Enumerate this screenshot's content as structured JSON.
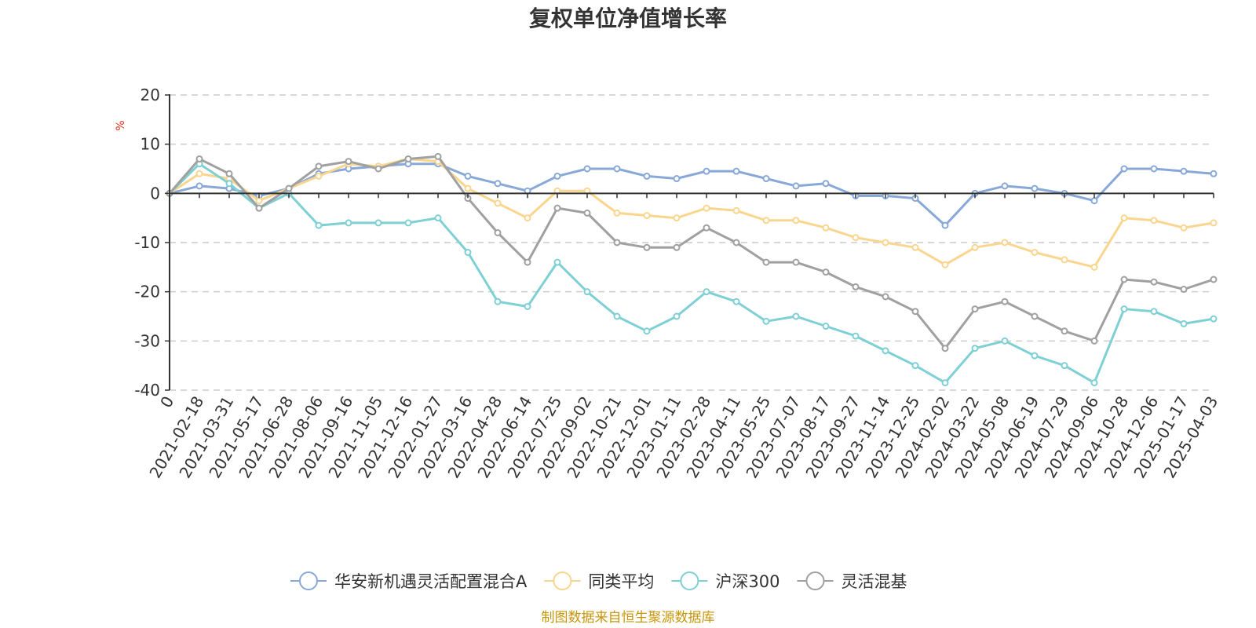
{
  "chart_data": {
    "type": "line",
    "title": "复权单位净值增长率",
    "ylabel": "%",
    "ylim": [
      -40,
      20
    ],
    "yticks": [
      20,
      10,
      0,
      -10,
      -20,
      -30,
      -40
    ],
    "grid": true,
    "legend_position": "bottom-center",
    "categories": [
      "0",
      "2021-02-18",
      "2021-03-31",
      "2021-05-17",
      "2021-06-28",
      "2021-08-06",
      "2021-09-16",
      "2021-11-05",
      "2021-12-16",
      "2022-01-27",
      "2022-03-16",
      "2022-04-28",
      "2022-06-14",
      "2022-07-25",
      "2022-09-02",
      "2022-10-21",
      "2022-12-01",
      "2023-01-11",
      "2023-02-28",
      "2023-04-11",
      "2023-05-25",
      "2023-07-07",
      "2023-08-17",
      "2023-09-27",
      "2023-11-14",
      "2023-12-25",
      "2024-02-02",
      "2024-03-22",
      "2024-05-08",
      "2024-06-19",
      "2024-07-29",
      "2024-09-06",
      "2024-10-28",
      "2024-12-06",
      "2025-01-17",
      "2025-04-03"
    ],
    "series": [
      {
        "name": "华安新机遇灵活配置混合A",
        "color": "#88a8d8",
        "values": [
          0,
          1.5,
          1.0,
          -0.5,
          1.0,
          4.0,
          5.0,
          5.5,
          6.0,
          6.0,
          3.5,
          2.0,
          0.5,
          3.5,
          5.0,
          5.0,
          3.5,
          3.0,
          4.5,
          4.5,
          3.0,
          1.5,
          2.0,
          -0.5,
          -0.5,
          -1.0,
          -6.5,
          0.0,
          1.5,
          1.0,
          0.0,
          -1.5,
          5.0,
          5.0,
          4.5,
          4.0
        ]
      },
      {
        "name": "同类平均",
        "color": "#fad58e",
        "values": [
          0,
          4.0,
          3.0,
          -1.5,
          1.0,
          3.5,
          6.0,
          5.5,
          7.0,
          6.5,
          1.0,
          -2.0,
          -5.0,
          0.5,
          0.5,
          -4.0,
          -4.5,
          -5.0,
          -3.0,
          -3.5,
          -5.5,
          -5.5,
          -7.0,
          -9.0,
          -10.0,
          -11.0,
          -14.5,
          -11.0,
          -10.0,
          -12.0,
          -13.5,
          -15.0,
          -5.0,
          -5.5,
          -7.0,
          -6.0
        ]
      },
      {
        "name": "沪深300",
        "color": "#7fd0d4",
        "values": [
          0,
          6.0,
          2.0,
          -3.0,
          0.0,
          -6.5,
          -6.0,
          -6.0,
          -6.0,
          -5.0,
          -12.0,
          -22.0,
          -23.0,
          -14.0,
          -20.0,
          -25.0,
          -28.0,
          -25.0,
          -20.0,
          -22.0,
          -26.0,
          -25.0,
          -27.0,
          -29.0,
          -32.0,
          -35.0,
          -38.5,
          -31.5,
          -30.0,
          -33.0,
          -35.0,
          -38.5,
          -23.5,
          -24.0,
          -26.5,
          -25.5
        ]
      },
      {
        "name": "灵活混基",
        "color": "#a0a0a0",
        "values": [
          0,
          7.0,
          4.0,
          -3.0,
          1.0,
          5.5,
          6.5,
          5.0,
          7.0,
          7.5,
          -1.0,
          -8.0,
          -14.0,
          -3.0,
          -4.0,
          -10.0,
          -11.0,
          -11.0,
          -7.0,
          -10.0,
          -14.0,
          -14.0,
          -16.0,
          -19.0,
          -21.0,
          -24.0,
          -31.5,
          -23.5,
          -22.0,
          -25.0,
          -28.0,
          -30.0,
          -17.5,
          -18.0,
          -19.5,
          -17.5
        ]
      }
    ]
  },
  "source_note": "制图数据来自恒生聚源数据库",
  "colors": {
    "title": "#333333",
    "axis": "#333333",
    "grid": "#cccccc",
    "ylabel": "#e0301e",
    "source": "#c8960a"
  }
}
